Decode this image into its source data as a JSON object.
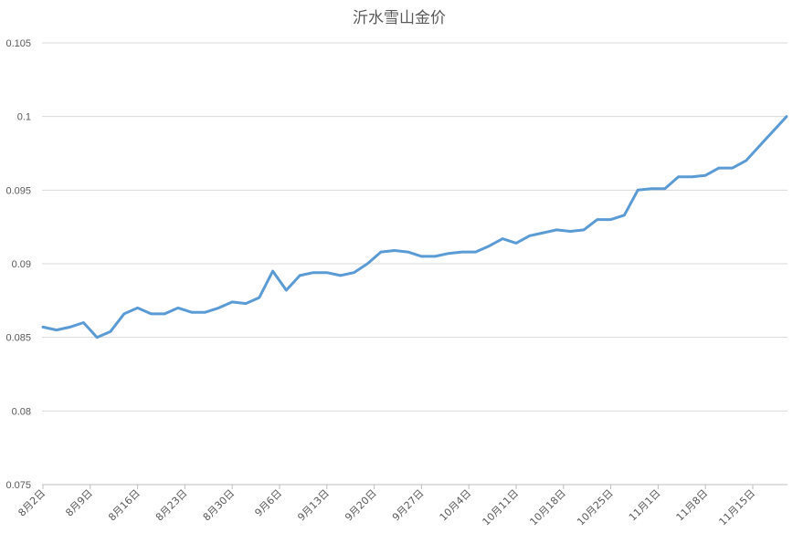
{
  "chart_data": {
    "type": "line",
    "title": "沂水雪山金价",
    "xlabel": "",
    "ylabel": "",
    "ylim": [
      0.075,
      0.105
    ],
    "yticks": [
      "0.075",
      "0.08",
      "0.085",
      "0.09",
      "0.095",
      "0.1",
      "0.105"
    ],
    "grid": true,
    "line_color": "#5b9bd5",
    "x_tick_labels": [
      "8月2日",
      "8月9日",
      "8月16日",
      "8月23日",
      "8月30日",
      "9月6日",
      "9月13日",
      "9月20日",
      "9月27日",
      "10月4日",
      "10月11日",
      "10月18日",
      "10月25日",
      "11月1日",
      "11月8日",
      "11月15日"
    ],
    "series": [
      {
        "values": [
          0.0857,
          0.0855,
          0.0857,
          0.086,
          0.085,
          0.0854,
          0.0866,
          0.087,
          0.0866,
          0.0866,
          0.087,
          0.0867,
          0.0867,
          0.087,
          0.0874,
          0.0873,
          0.0877,
          0.0895,
          0.0882,
          0.0892,
          0.0894,
          0.0894,
          0.0892,
          0.0894,
          0.09,
          0.0908,
          0.0909,
          0.0908,
          0.0905,
          0.0905,
          0.0907,
          0.0908,
          0.0908,
          0.0912,
          0.0917,
          0.0914,
          0.0919,
          0.0921,
          0.0923,
          0.0922,
          0.0923,
          0.093,
          0.093,
          0.0933,
          0.095,
          0.0951,
          0.0951,
          0.0959,
          0.0959,
          0.096,
          0.0965,
          0.0965,
          0.097,
          0.098,
          0.099,
          0.1
        ]
      }
    ]
  }
}
